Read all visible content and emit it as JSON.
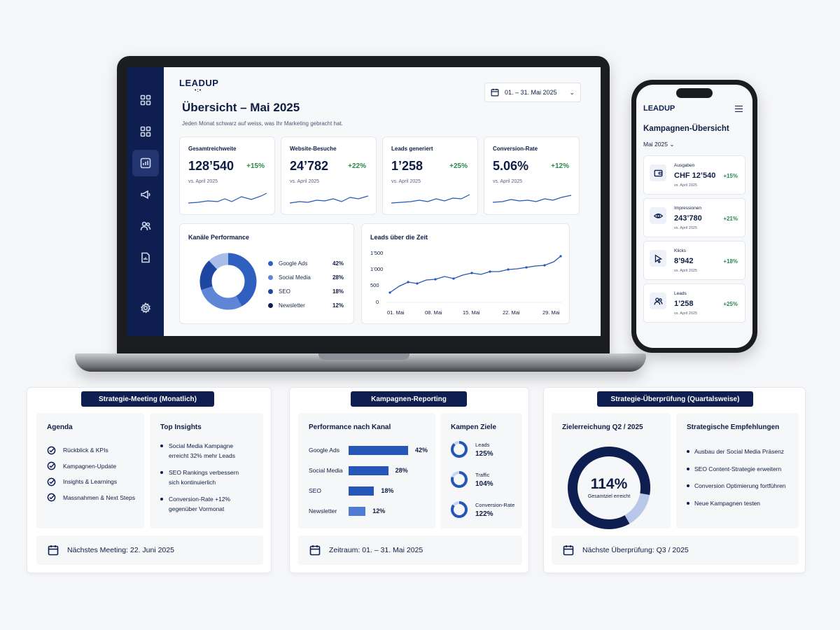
{
  "brand": {
    "logo": "LEADUP",
    "logo_dots": "•:•",
    "navy": "#0e1e50",
    "blue": "#2556b8",
    "green": "#2a8a4a"
  },
  "laptop": {
    "sidebar": [
      "grid-icon",
      "grid-icon",
      "bar-chart-icon",
      "megaphone-icon",
      "users-icon",
      "document-icon",
      "gear-icon"
    ],
    "date_range": "01. – 31. Mai 2025",
    "title": "Übersicht – Mai 2025",
    "subtitle": "Jeden Monat schwarz auf weiss, was Ihr Marketing gebracht hat.",
    "kpis": [
      {
        "label": "Gesamtreichweite",
        "value": "128’540",
        "delta": "+15%",
        "compare": "vs. April 2025"
      },
      {
        "label": "Website-Besuche",
        "value": "24’782",
        "delta": "+22%",
        "compare": "vs. April 2025"
      },
      {
        "label": "Leads generiert",
        "value": "1’258",
        "delta": "+25%",
        "compare": "vs. April 2025"
      },
      {
        "label": "Conversion-Rate",
        "value": "5.06%",
        "delta": "+12%",
        "compare": "vs. April 2025"
      }
    ],
    "channels": {
      "title": "Kanäle Performance",
      "items": [
        {
          "name": "Google Ads",
          "pct": "42%",
          "value": 42,
          "color": "#2f5fbf"
        },
        {
          "name": "Social Media",
          "pct": "28%",
          "value": 28,
          "color": "#5f86d6"
        },
        {
          "name": "SEO",
          "pct": "18%",
          "value": 18,
          "color": "#1e46a0"
        },
        {
          "name": "Newsletter",
          "pct": "12%",
          "value": 12,
          "color": "#a9bde9"
        }
      ]
    },
    "leads_chart": {
      "title": "Leads über die Zeit",
      "y_ticks": [
        "1’500",
        "1’000",
        "500",
        "0"
      ],
      "x_ticks": [
        "01. Mai",
        "08. Mai",
        "15. Mai",
        "22. Mai",
        "29. Mai"
      ]
    }
  },
  "phone": {
    "title": "Kampagnen-Übersicht",
    "month": "Mai 2025",
    "month_chevron": "⌄",
    "cards": [
      {
        "icon": "wallet-icon",
        "label": "Ausgaben",
        "value": "CHF 12’540",
        "compare": "vs. April 2025",
        "delta": "+15%"
      },
      {
        "icon": "eye-icon",
        "label": "Impressionen",
        "value": "243’780",
        "compare": "vs. April 2025",
        "delta": "+21%"
      },
      {
        "icon": "cursor-icon",
        "label": "Klicks",
        "value": "8’942",
        "compare": "vs. April 2025",
        "delta": "+18%"
      },
      {
        "icon": "users-icon",
        "label": "Leads",
        "value": "1’258",
        "compare": "vs. April 2025",
        "delta": "+25%"
      }
    ]
  },
  "meeting": {
    "badge": "Strategie-Meeting (Monatlich)",
    "agenda_title": "Agenda",
    "agenda": [
      "Rückblick & KPIs",
      "Kampagnen-Update",
      "Insights & Learnings",
      "Massnahmen & Next Steps"
    ],
    "insights_title": "Top Insights",
    "insights": [
      [
        "Social Media Kampagne",
        "erreicht 32% mehr Leads"
      ],
      [
        "SEO Rankings verbessern",
        "sich kontinuierlich"
      ],
      [
        "Conversion-Rate +12%",
        "gegenüber Vormonat"
      ]
    ],
    "footer": "Nächstes Meeting: 22. Juni 2025"
  },
  "reporting": {
    "badge": "Kampagnen-Reporting",
    "perf_title": "Performance nach Kanal",
    "perf": [
      {
        "name": "Google Ads",
        "pct": "42%",
        "value": 42
      },
      {
        "name": "Social Media",
        "pct": "28%",
        "value": 28
      },
      {
        "name": "SEO",
        "pct": "18%",
        "value": 18
      },
      {
        "name": "Newsletter",
        "pct": "12%",
        "value": 12
      }
    ],
    "goals_title": "Kampen Ziele",
    "goals": [
      {
        "label": "Leads",
        "pct": "125%",
        "fill": 0.88
      },
      {
        "label": "Traffic",
        "pct": "104%",
        "fill": 0.8
      },
      {
        "label": "Conversion-Rate",
        "pct": "122%",
        "fill": 0.85
      }
    ],
    "footer": "Zeitraum: 01. – 31. Mai 2025"
  },
  "review": {
    "badge": "Strategie-Überprüfung (Quartalsweise)",
    "goal_title": "Zielerreichung Q2 / 2025",
    "goal_value": "114%",
    "goal_sub": "Gesamtziel erreicht",
    "goal_fill": 0.86,
    "rec_title": "Strategische Empfehlungen",
    "recs": [
      "Ausbau der Social Media Präsenz",
      "SEO Content-Strategie erweitern",
      "Conversion Optimierung fortführen",
      "Neue Kampagnen testen"
    ],
    "footer": "Nächste Überprüfung: Q3 / 2025"
  }
}
